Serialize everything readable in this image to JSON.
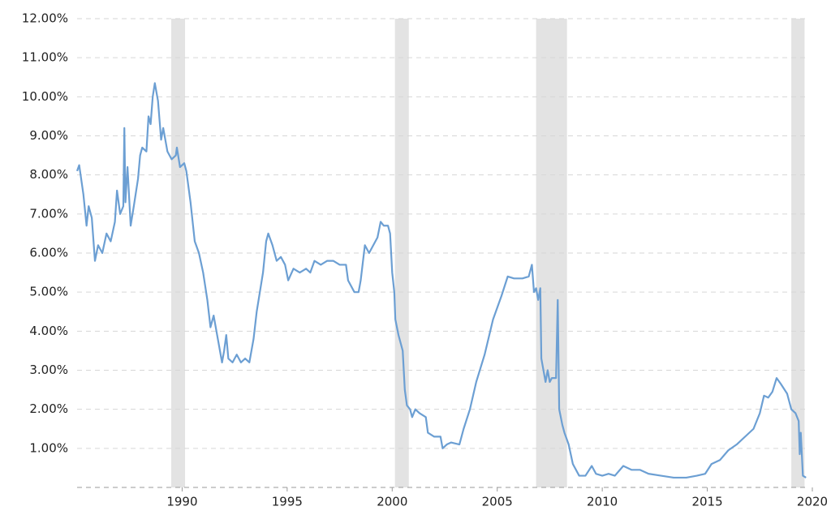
{
  "chart_data": {
    "type": "line",
    "color": "#6c9fd3",
    "shading_color": "#e3e3e3",
    "grid": true,
    "xlim": [
      1985,
      2020
    ],
    "ylim": [
      0,
      12
    ],
    "xticks": [
      1990,
      1995,
      2000,
      2005,
      2010,
      2015,
      2020
    ],
    "yticks": [
      {
        "value": 1,
        "label": "1.00%"
      },
      {
        "value": 2,
        "label": "2.00%"
      },
      {
        "value": 3,
        "label": "3.00%"
      },
      {
        "value": 4,
        "label": "4.00%"
      },
      {
        "value": 5,
        "label": "5.00%"
      },
      {
        "value": 6,
        "label": "6.00%"
      },
      {
        "value": 7,
        "label": "7.00%"
      },
      {
        "value": 8,
        "label": "8.00%"
      },
      {
        "value": 9,
        "label": "9.00%"
      },
      {
        "value": 10,
        "label": "10.00%"
      },
      {
        "value": 11,
        "label": "11.00%"
      },
      {
        "value": 12,
        "label": "12.00%"
      }
    ],
    "recessions": [
      [
        1989.48,
        1990.14
      ],
      [
        2000.13,
        2000.79
      ],
      [
        2006.85,
        2008.32
      ],
      [
        2019.0,
        2019.63
      ]
    ],
    "x": [
      1985.0,
      1985.1,
      1985.3,
      1985.45,
      1985.55,
      1985.7,
      1985.85,
      1986.0,
      1986.2,
      1986.4,
      1986.6,
      1986.8,
      1986.9,
      1987.05,
      1987.2,
      1987.25,
      1987.3,
      1987.4,
      1987.55,
      1987.7,
      1987.9,
      1988.0,
      1988.1,
      1988.3,
      1988.4,
      1988.5,
      1988.6,
      1988.7,
      1988.85,
      1989.0,
      1989.1,
      1989.3,
      1989.5,
      1989.7,
      1989.75,
      1989.9,
      1990.1,
      1990.2,
      1990.4,
      1990.6,
      1990.8,
      1991.0,
      1991.2,
      1991.35,
      1991.5,
      1991.7,
      1991.9,
      1992.0,
      1992.1,
      1992.2,
      1992.4,
      1992.6,
      1992.8,
      1993.0,
      1993.2,
      1993.4,
      1993.55,
      1993.7,
      1993.85,
      1994.0,
      1994.1,
      1994.3,
      1994.5,
      1994.7,
      1994.9,
      1995.05,
      1995.3,
      1995.6,
      1995.9,
      1996.1,
      1996.3,
      1996.6,
      1996.9,
      1997.2,
      1997.5,
      1997.8,
      1997.9,
      1998.2,
      1998.4,
      1998.5,
      1998.7,
      1998.9,
      1999.1,
      1999.3,
      1999.45,
      1999.6,
      1999.8,
      1999.9,
      2000.0,
      2000.1,
      2000.15,
      2000.3,
      2000.5,
      2000.6,
      2000.7,
      2000.85,
      2000.95,
      2001.1,
      2001.3,
      2001.6,
      2001.7,
      2002.0,
      2002.3,
      2002.4,
      2002.6,
      2002.8,
      2003.2,
      2003.4,
      2003.7,
      2004.0,
      2004.4,
      2004.8,
      2005.2,
      2005.5,
      2005.8,
      2006.2,
      2006.5,
      2006.65,
      2006.75,
      2006.85,
      2006.95,
      2007.05,
      2007.1,
      2007.3,
      2007.4,
      2007.5,
      2007.6,
      2007.8,
      2007.88,
      2007.95,
      2008.1,
      2008.2,
      2008.4,
      2008.6,
      2008.9,
      2009.2,
      2009.5,
      2009.7,
      2010.0,
      2010.3,
      2010.6,
      2011.0,
      2011.4,
      2011.8,
      2012.2,
      2012.8,
      2013.4,
      2014.0,
      2014.5,
      2014.9,
      2015.2,
      2015.6,
      2016.0,
      2016.4,
      2016.8,
      2017.2,
      2017.5,
      2017.7,
      2017.9,
      2018.1,
      2018.3,
      2018.5,
      2018.8,
      2019.0,
      2019.2,
      2019.35,
      2019.4,
      2019.45,
      2019.55,
      2019.7
    ],
    "values": [
      8.1,
      8.25,
      7.5,
      6.7,
      7.2,
      6.9,
      5.8,
      6.2,
      6.0,
      6.5,
      6.3,
      6.8,
      7.6,
      7.0,
      7.2,
      9.2,
      7.3,
      8.2,
      6.7,
      7.2,
      7.9,
      8.5,
      8.7,
      8.6,
      9.5,
      9.3,
      10.0,
      10.35,
      9.9,
      8.9,
      9.2,
      8.6,
      8.4,
      8.5,
      8.7,
      8.2,
      8.3,
      8.1,
      7.3,
      6.3,
      6.0,
      5.5,
      4.8,
      4.1,
      4.4,
      3.8,
      3.2,
      3.5,
      3.9,
      3.3,
      3.2,
      3.4,
      3.2,
      3.3,
      3.2,
      3.8,
      4.5,
      5.0,
      5.5,
      6.3,
      6.5,
      6.2,
      5.8,
      5.9,
      5.7,
      5.3,
      5.6,
      5.5,
      5.6,
      5.5,
      5.8,
      5.7,
      5.8,
      5.8,
      5.7,
      5.7,
      5.3,
      5.0,
      5.0,
      5.3,
      6.2,
      6.0,
      6.2,
      6.4,
      6.8,
      6.7,
      6.7,
      6.5,
      5.5,
      5.0,
      4.3,
      3.9,
      3.5,
      2.5,
      2.1,
      2.0,
      1.8,
      2.0,
      1.9,
      1.8,
      1.4,
      1.3,
      1.3,
      1.0,
      1.1,
      1.15,
      1.1,
      1.5,
      2.0,
      2.7,
      3.4,
      4.3,
      4.9,
      5.4,
      5.35,
      5.35,
      5.4,
      5.7,
      5.0,
      5.1,
      4.8,
      5.1,
      3.3,
      2.7,
      3.0,
      2.7,
      2.8,
      2.8,
      4.8,
      2.0,
      1.6,
      1.4,
      1.1,
      0.6,
      0.3,
      0.3,
      0.55,
      0.35,
      0.3,
      0.35,
      0.3,
      0.55,
      0.45,
      0.45,
      0.35,
      0.3,
      0.25,
      0.25,
      0.3,
      0.35,
      0.6,
      0.7,
      0.95,
      1.1,
      1.3,
      1.5,
      1.9,
      2.35,
      2.3,
      2.45,
      2.8,
      2.65,
      2.4,
      2.0,
      1.9,
      1.7,
      0.85,
      1.4,
      0.3,
      0.25
    ]
  }
}
